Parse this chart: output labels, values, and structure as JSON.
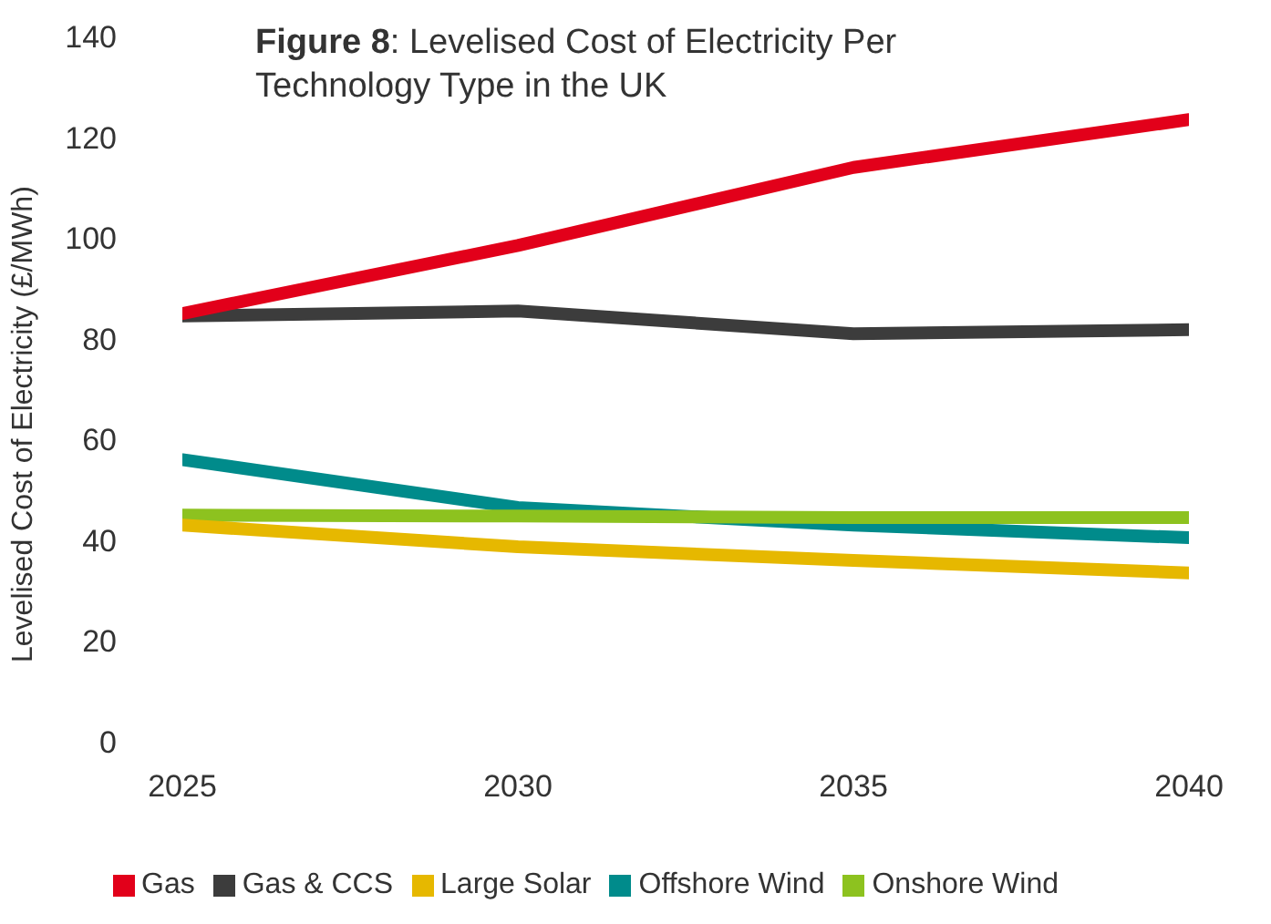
{
  "chart_data": {
    "type": "line",
    "title": "Figure 8: Levelised Cost of Electricity Per Technology Type in the UK",
    "ylabel": "Levelised Cost of Electricity (£/MWh)",
    "x": [
      2025,
      2030,
      2035,
      2040
    ],
    "xlim": [
      2025,
      2040
    ],
    "xticks": [
      2025,
      2030,
      2035,
      2040
    ],
    "ylim": [
      0,
      140
    ],
    "yticks": [
      0,
      20,
      40,
      60,
      80,
      100,
      120,
      140
    ],
    "grid": false,
    "legend": "bottom",
    "marker": "none",
    "series": [
      {
        "name": "Offshore Wind",
        "color": "#008b8b",
        "values": [
          56,
          46.5,
          43,
          40.5
        ]
      },
      {
        "name": "Onshore Wind",
        "color": "#8dc21f",
        "values": [
          45,
          44.8,
          44.5,
          44.5
        ]
      },
      {
        "name": "Large Solar",
        "color": "#e6b800",
        "values": [
          43,
          38.7,
          36,
          33.5
        ]
      },
      {
        "name": "Gas & CCS",
        "color": "#3c3c3c",
        "values": [
          84.5,
          85.5,
          81,
          81.8
        ]
      },
      {
        "name": "Gas",
        "color": "#e2001a",
        "values": [
          85,
          98.5,
          114,
          123.5
        ]
      }
    ]
  }
}
